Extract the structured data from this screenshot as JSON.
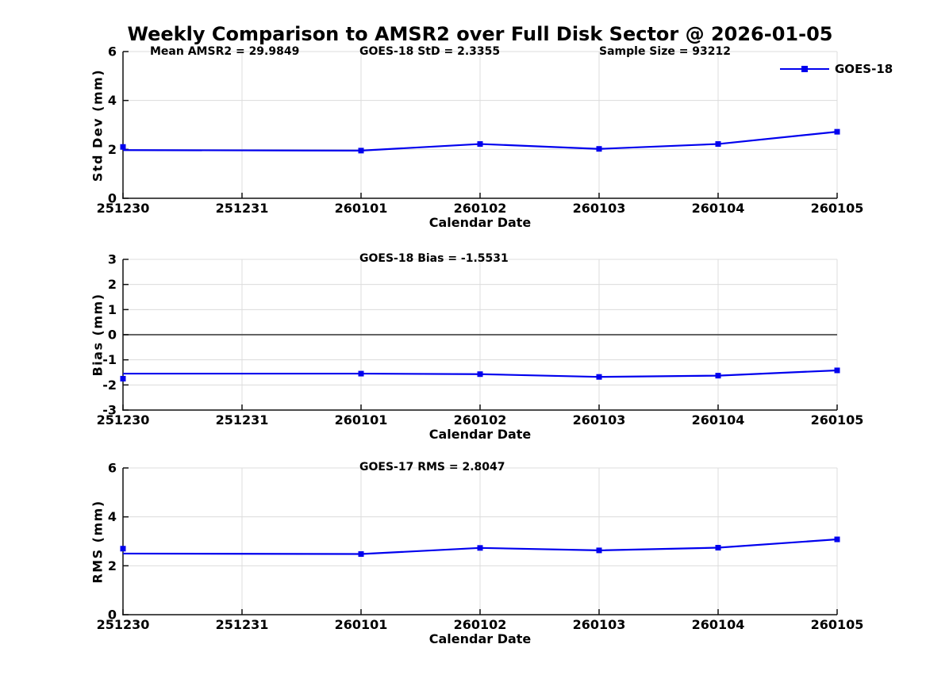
{
  "title": "Weekly Comparison to AMSR2 over Full Disk Sector @ 2026-01-05",
  "legend": {
    "label": "GOES-18"
  },
  "colors": {
    "line": "#0000EE",
    "grid": "#DCDCDC",
    "axis": "#111111",
    "zero_line": "#4D4D4D",
    "text": "#000000",
    "background": "#FFFFFF"
  },
  "x_axis": {
    "label": "Calendar Date",
    "ticks": [
      "251230",
      "251231",
      "260101",
      "260102",
      "260103",
      "260104",
      "260105"
    ]
  },
  "chart_data": [
    {
      "type": "line",
      "name": "std-dev",
      "ylabel": "Std Dev (mm)",
      "xlabel": "Calendar Date",
      "ylim": [
        0,
        6
      ],
      "yticks": [
        0,
        2,
        4,
        6
      ],
      "grid": true,
      "zero_line": false,
      "annotations": [
        {
          "text": "Mean AMSR2 = 29.9849"
        },
        {
          "text": "GOES-18 StD = 2.3355"
        },
        {
          "text": "Sample Size = 93212"
        }
      ],
      "series": [
        {
          "name": "GOES-18",
          "x": [
            "251230",
            "260101",
            "260102",
            "260103",
            "260104",
            "260105"
          ],
          "y": [
            1.97,
            1.95,
            2.22,
            2.02,
            2.22,
            2.72
          ],
          "marker_y": [
            2.1,
            1.95,
            2.22,
            2.02,
            2.22,
            2.72
          ]
        }
      ]
    },
    {
      "type": "line",
      "name": "bias",
      "ylabel": "Bias (mm)",
      "xlabel": "Calendar Date",
      "ylim": [
        -3,
        3
      ],
      "yticks": [
        -3,
        -2,
        -1,
        0,
        1,
        2,
        3
      ],
      "grid": true,
      "zero_line": true,
      "annotations": [
        {
          "text": "GOES-18 Bias  = -1.5531"
        }
      ],
      "series": [
        {
          "name": "GOES-18",
          "x": [
            "251230",
            "260101",
            "260102",
            "260103",
            "260104",
            "260105"
          ],
          "y": [
            -1.55,
            -1.55,
            -1.57,
            -1.68,
            -1.63,
            -1.42
          ],
          "marker_y": [
            -1.75,
            -1.55,
            -1.57,
            -1.68,
            -1.63,
            -1.42
          ]
        }
      ]
    },
    {
      "type": "line",
      "name": "rms",
      "ylabel": "RMS (mm)",
      "xlabel": "Calendar Date",
      "ylim": [
        0,
        6
      ],
      "yticks": [
        0,
        2,
        4,
        6
      ],
      "grid": true,
      "zero_line": false,
      "annotations": [
        {
          "text": "GOES-17 RMS = 2.8047"
        }
      ],
      "series": [
        {
          "name": "GOES-18",
          "x": [
            "251230",
            "260101",
            "260102",
            "260103",
            "260104",
            "260105"
          ],
          "y": [
            2.5,
            2.48,
            2.73,
            2.63,
            2.74,
            3.08
          ],
          "marker_y": [
            2.7,
            2.48,
            2.73,
            2.63,
            2.74,
            3.08
          ]
        }
      ]
    }
  ]
}
